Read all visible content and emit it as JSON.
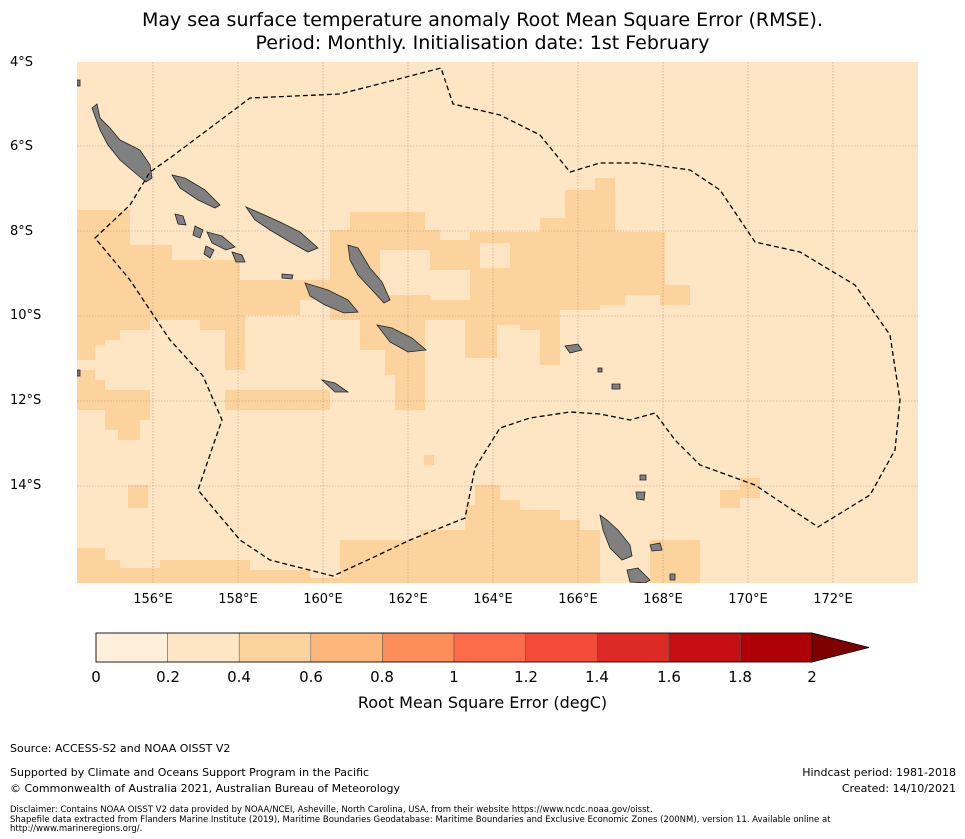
{
  "title_line1": "May sea surface temperature anomaly Root Mean Square Error (RMSE).",
  "title_line2": "Period: Monthly. Initialisation date: 1st February",
  "lat_labels": [
    "4°S",
    "6°S",
    "8°S",
    "10°S",
    "12°S",
    "14°S"
  ],
  "lon_labels": [
    "156°E",
    "158°E",
    "160°E",
    "162°E",
    "164°E",
    "166°E",
    "168°E",
    "170°E",
    "172°E"
  ],
  "colorbar": {
    "label": "Root Mean Square Error (degC)",
    "ticks": [
      "0",
      "0.2",
      "0.4",
      "0.6",
      "0.8",
      "1",
      "1.2",
      "1.4",
      "1.6",
      "1.8",
      "2"
    ],
    "colors": [
      "#fff0dc",
      "#fee6c4",
      "#fdd39d",
      "#fdb77a",
      "#fc8d59",
      "#fc6c4a",
      "#f44b38",
      "#dd2a24",
      "#c80e15",
      "#b00007"
    ],
    "extend_color": "#7f0000"
  },
  "map_colors": {
    "base_rmse_0_2_0_4": "#fee6c4",
    "patch_rmse_0_4_0_6": "#fdd39d",
    "low_rmse_0_0_2": "#fff0dc",
    "land": "#808080",
    "eez_line": "#000000"
  },
  "footer": {
    "source": "Source: ACCESS-S2 and NOAA OISST V2",
    "supported": "Supported by Climate and Oceans Support Program in the Pacific",
    "copyright": "© Commonwealth of Australia 2021, Australian Bureau of Meteorology",
    "hindcast": "Hindcast period: 1981-2018",
    "created": "Created: 14/10/2021",
    "disclaimer1": "Disclaimer: Contains NOAA OISST V2 data provided by NOAA/NCEI, Asheville, North Carolina, USA, from their website https://www.ncdc.noaa.gov/oisst.",
    "disclaimer2": "Shapefile data extracted from Flanders Marine Institute (2019), Maritime Boundaries Geodatabase: Maritime Boundaries and Exclusive Economic Zones (200NM), version 11. Available online at http://www.marineregions.org/."
  }
}
